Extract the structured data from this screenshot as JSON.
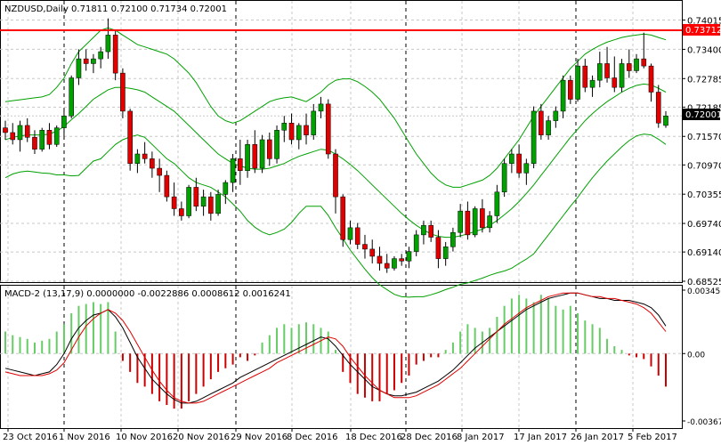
{
  "window": {
    "symbol_header": "NZDUSD,Daily  0.71811 0.72100 0.71734 0.72001",
    "macd_header": "MACD-2 (13,17,9) 0.0000000 -0.0022886 0.0008612 0.0016241"
  },
  "colors": {
    "background": "#ffffff",
    "grid": "#c8c8c8",
    "bull_candle": "#00a000",
    "bear_candle": "#e00000",
    "bollinger": "#00a000",
    "resistance": "#ff0000",
    "current_price_bg": "#000000",
    "resistance_tag_bg": "#ff0000",
    "macd_line": "#000000",
    "signal_line": "#e00000",
    "hist_pos": "#66cc66",
    "hist_neg": "#cc0000"
  },
  "chart_data": [
    {
      "type": "candlestick",
      "symbol": "NZDUSD",
      "timeframe": "Daily",
      "ylim": [
        0.68525,
        0.741
      ],
      "y_ticks": [
        "0.74015",
        "0.73400",
        "0.72785",
        "0.72185",
        "0.71570",
        "0.70970",
        "0.70355",
        "0.69740",
        "0.69140",
        "0.68525"
      ],
      "x_labels": [
        "23 Oct 2016",
        "1 Nov 2016",
        "10 Nov 2016",
        "20 Nov 2016",
        "29 Nov 2016",
        "8 Dec 2016",
        "18 Dec 2016",
        "28 Dec 2016",
        "8 Jan 2017",
        "17 Jan 2017",
        "26 Jan 2017",
        "5 Feb 2017"
      ],
      "resistance_level": "0.73712",
      "current_price": "0.72001",
      "candles": [
        [
          0.7175,
          0.719,
          0.715,
          0.7165
        ],
        [
          0.7165,
          0.7185,
          0.714,
          0.715
        ],
        [
          0.715,
          0.719,
          0.7125,
          0.718
        ],
        [
          0.718,
          0.7195,
          0.7145,
          0.7155
        ],
        [
          0.7155,
          0.717,
          0.712,
          0.713
        ],
        [
          0.713,
          0.7175,
          0.7125,
          0.717
        ],
        [
          0.717,
          0.7185,
          0.713,
          0.714
        ],
        [
          0.714,
          0.718,
          0.7135,
          0.7175
        ],
        [
          0.7175,
          0.7215,
          0.715,
          0.72
        ],
        [
          0.72,
          0.7285,
          0.7195,
          0.728
        ],
        [
          0.728,
          0.734,
          0.7265,
          0.732
        ],
        [
          0.732,
          0.734,
          0.7295,
          0.731
        ],
        [
          0.731,
          0.733,
          0.729,
          0.732
        ],
        [
          0.732,
          0.7345,
          0.73,
          0.7335
        ],
        [
          0.7335,
          0.7405,
          0.732,
          0.737
        ],
        [
          0.737,
          0.738,
          0.7275,
          0.729
        ],
        [
          0.729,
          0.73,
          0.7195,
          0.721
        ],
        [
          0.721,
          0.7215,
          0.7085,
          0.71
        ],
        [
          0.71,
          0.713,
          0.708,
          0.712
        ],
        [
          0.712,
          0.7145,
          0.71,
          0.711
        ],
        [
          0.711,
          0.7125,
          0.707,
          0.709
        ],
        [
          0.709,
          0.711,
          0.704,
          0.7075
        ],
        [
          0.7075,
          0.7085,
          0.702,
          0.703
        ],
        [
          0.703,
          0.706,
          0.699,
          0.7005
        ],
        [
          0.7005,
          0.702,
          0.698,
          0.699
        ],
        [
          0.699,
          0.7055,
          0.6985,
          0.705
        ],
        [
          0.705,
          0.707,
          0.7,
          0.701
        ],
        [
          0.701,
          0.7045,
          0.699,
          0.703
        ],
        [
          0.703,
          0.704,
          0.698,
          0.6995
        ],
        [
          0.6995,
          0.7045,
          0.699,
          0.7035
        ],
        [
          0.7035,
          0.7065,
          0.7015,
          0.706
        ],
        [
          0.706,
          0.712,
          0.704,
          0.711
        ],
        [
          0.711,
          0.715,
          0.7055,
          0.7085
        ],
        [
          0.7085,
          0.715,
          0.707,
          0.714
        ],
        [
          0.714,
          0.717,
          0.708,
          0.709
        ],
        [
          0.709,
          0.716,
          0.708,
          0.715
        ],
        [
          0.715,
          0.7165,
          0.7095,
          0.711
        ],
        [
          0.711,
          0.718,
          0.71,
          0.717
        ],
        [
          0.717,
          0.72,
          0.7145,
          0.7185
        ],
        [
          0.7185,
          0.7205,
          0.714,
          0.715
        ],
        [
          0.715,
          0.7185,
          0.713,
          0.718
        ],
        [
          0.718,
          0.7205,
          0.714,
          0.716
        ],
        [
          0.716,
          0.7225,
          0.715,
          0.721
        ],
        [
          0.721,
          0.724,
          0.7195,
          0.7225
        ],
        [
          0.7225,
          0.7235,
          0.711,
          0.712
        ],
        [
          0.712,
          0.713,
          0.6995,
          0.703
        ],
        [
          0.703,
          0.7035,
          0.6925,
          0.694
        ],
        [
          0.694,
          0.698,
          0.693,
          0.6965
        ],
        [
          0.6965,
          0.6975,
          0.692,
          0.693
        ],
        [
          0.693,
          0.695,
          0.69,
          0.692
        ],
        [
          0.692,
          0.694,
          0.689,
          0.6905
        ],
        [
          0.6905,
          0.6925,
          0.6875,
          0.689
        ],
        [
          0.689,
          0.691,
          0.687,
          0.688
        ],
        [
          0.688,
          0.6905,
          0.6875,
          0.69
        ],
        [
          0.69,
          0.691,
          0.6885,
          0.6895
        ],
        [
          0.6895,
          0.6925,
          0.688,
          0.6915
        ],
        [
          0.6915,
          0.696,
          0.6905,
          0.695
        ],
        [
          0.695,
          0.698,
          0.693,
          0.697
        ],
        [
          0.697,
          0.698,
          0.6935,
          0.6945
        ],
        [
          0.6945,
          0.696,
          0.688,
          0.69
        ],
        [
          0.69,
          0.6935,
          0.6885,
          0.6925
        ],
        [
          0.6925,
          0.6965,
          0.6915,
          0.6955
        ],
        [
          0.6955,
          0.7015,
          0.6945,
          0.7
        ],
        [
          0.7,
          0.702,
          0.694,
          0.695
        ],
        [
          0.695,
          0.701,
          0.6945,
          0.7005
        ],
        [
          0.7005,
          0.7025,
          0.6955,
          0.6965
        ],
        [
          0.6965,
          0.7,
          0.6955,
          0.699
        ],
        [
          0.699,
          0.7055,
          0.6975,
          0.704
        ],
        [
          0.704,
          0.711,
          0.703,
          0.71
        ],
        [
          0.71,
          0.713,
          0.708,
          0.712
        ],
        [
          0.712,
          0.714,
          0.707,
          0.708
        ],
        [
          0.708,
          0.711,
          0.7055,
          0.71
        ],
        [
          0.71,
          0.722,
          0.709,
          0.721
        ],
        [
          0.721,
          0.7225,
          0.715,
          0.716
        ],
        [
          0.716,
          0.72,
          0.715,
          0.719
        ],
        [
          0.719,
          0.722,
          0.7175,
          0.721
        ],
        [
          0.721,
          0.7285,
          0.7195,
          0.7275
        ],
        [
          0.7275,
          0.7285,
          0.7225,
          0.7235
        ],
        [
          0.7235,
          0.732,
          0.723,
          0.7305
        ],
        [
          0.7305,
          0.732,
          0.725,
          0.726
        ],
        [
          0.726,
          0.7285,
          0.724,
          0.7275
        ],
        [
          0.7275,
          0.7335,
          0.726,
          0.731
        ],
        [
          0.731,
          0.7345,
          0.727,
          0.728
        ],
        [
          0.728,
          0.7325,
          0.725,
          0.726
        ],
        [
          0.726,
          0.732,
          0.725,
          0.731
        ],
        [
          0.731,
          0.734,
          0.728,
          0.7295
        ],
        [
          0.7295,
          0.733,
          0.729,
          0.732
        ],
        [
          0.732,
          0.7375,
          0.73,
          0.7305
        ],
        [
          0.7305,
          0.731,
          0.723,
          0.725
        ],
        [
          0.725,
          0.7265,
          0.7175,
          0.7185
        ],
        [
          0.718,
          0.721,
          0.7175,
          0.72
        ]
      ],
      "bollinger": {
        "upper": [
          0.723,
          0.7232,
          0.7234,
          0.7236,
          0.7238,
          0.724,
          0.7245,
          0.726,
          0.728,
          0.731,
          0.7335,
          0.735,
          0.7365,
          0.738,
          0.7385,
          0.738,
          0.737,
          0.736,
          0.735,
          0.7345,
          0.734,
          0.7335,
          0.733,
          0.732,
          0.7305,
          0.729,
          0.727,
          0.7245,
          0.722,
          0.72,
          0.719,
          0.7185,
          0.719,
          0.72,
          0.721,
          0.722,
          0.723,
          0.7235,
          0.7238,
          0.724,
          0.7235,
          0.723,
          0.724,
          0.725,
          0.7265,
          0.7275,
          0.7278,
          0.7278,
          0.7272,
          0.7262,
          0.725,
          0.7235,
          0.7215,
          0.7195,
          0.717,
          0.7145,
          0.712,
          0.71,
          0.708,
          0.7065,
          0.7055,
          0.705,
          0.705,
          0.7055,
          0.706,
          0.7065,
          0.7075,
          0.709,
          0.711,
          0.713,
          0.715,
          0.7175,
          0.72,
          0.722,
          0.724,
          0.726,
          0.728,
          0.73,
          0.7315,
          0.733,
          0.734,
          0.7348,
          0.7355,
          0.736,
          0.7365,
          0.7368,
          0.737,
          0.7372,
          0.737,
          0.7365,
          0.736
        ],
        "middle": [
          0.715,
          0.7155,
          0.7158,
          0.716,
          0.716,
          0.716,
          0.7162,
          0.7168,
          0.7178,
          0.7192,
          0.7205,
          0.722,
          0.7235,
          0.7245,
          0.7255,
          0.726,
          0.726,
          0.7258,
          0.7255,
          0.725,
          0.724,
          0.723,
          0.722,
          0.721,
          0.7195,
          0.718,
          0.7165,
          0.715,
          0.7135,
          0.712,
          0.711,
          0.71,
          0.7095,
          0.709,
          0.7088,
          0.7088,
          0.709,
          0.7095,
          0.71,
          0.7108,
          0.7115,
          0.712,
          0.7125,
          0.713,
          0.7128,
          0.712,
          0.711,
          0.7098,
          0.7085,
          0.707,
          0.7055,
          0.704,
          0.7025,
          0.701,
          0.6995,
          0.6982,
          0.697,
          0.696,
          0.6952,
          0.6947,
          0.6945,
          0.6945,
          0.6948,
          0.6952,
          0.6957,
          0.6962,
          0.697,
          0.698,
          0.6992,
          0.7005,
          0.702,
          0.7037,
          0.7055,
          0.7075,
          0.7095,
          0.7115,
          0.7135,
          0.7155,
          0.7172,
          0.719,
          0.7205,
          0.7218,
          0.723,
          0.724,
          0.725,
          0.7258,
          0.7264,
          0.7267,
          0.7265,
          0.7258,
          0.725
        ],
        "lower": [
          0.707,
          0.7078,
          0.7082,
          0.7084,
          0.7082,
          0.708,
          0.7079,
          0.7076,
          0.7076,
          0.7074,
          0.7075,
          0.709,
          0.7105,
          0.711,
          0.7125,
          0.714,
          0.715,
          0.7156,
          0.716,
          0.7155,
          0.714,
          0.7125,
          0.711,
          0.71,
          0.7085,
          0.707,
          0.706,
          0.7055,
          0.705,
          0.704,
          0.703,
          0.7015,
          0.7,
          0.698,
          0.6966,
          0.6956,
          0.695,
          0.6955,
          0.6962,
          0.6976,
          0.6995,
          0.701,
          0.701,
          0.701,
          0.6991,
          0.6965,
          0.6942,
          0.6918,
          0.6898,
          0.6878,
          0.686,
          0.6845,
          0.6835,
          0.6825,
          0.682,
          0.6819,
          0.682,
          0.682,
          0.6824,
          0.6829,
          0.6835,
          0.684,
          0.6846,
          0.6849,
          0.6854,
          0.6859,
          0.6865,
          0.687,
          0.6874,
          0.688,
          0.689,
          0.6899,
          0.691,
          0.693,
          0.695,
          0.697,
          0.699,
          0.701,
          0.7029,
          0.705,
          0.707,
          0.7088,
          0.7105,
          0.712,
          0.7135,
          0.7148,
          0.7158,
          0.7162,
          0.716,
          0.7151,
          0.714
        ]
      }
    },
    {
      "type": "macd",
      "ylim": [
        -0.003673,
        0.003456
      ],
      "y_ticks": [
        "0.003456",
        "0.00",
        "-0.003673"
      ],
      "histogram": [
        0.0012,
        0.001,
        0.0009,
        0.0008,
        0.0006,
        0.0007,
        0.0008,
        0.0012,
        0.0016,
        0.0022,
        0.0026,
        0.0027,
        0.0028,
        0.0027,
        0.0028,
        0.0012,
        -0.0004,
        -0.001,
        -0.0016,
        -0.0018,
        -0.0022,
        -0.0026,
        -0.0028,
        -0.003,
        -0.003,
        -0.0026,
        -0.0022,
        -0.0018,
        -0.0014,
        -0.001,
        -0.0008,
        -0.0006,
        -0.0002,
        -0.0004,
        -0.0001,
        0.0006,
        0.001,
        0.0014,
        0.0016,
        0.0014,
        0.0016,
        0.0017,
        0.0016,
        0.0014,
        0.0012,
        0.0002,
        -0.001,
        -0.0016,
        -0.0022,
        -0.0024,
        -0.0026,
        -0.0026,
        -0.0022,
        -0.002,
        -0.0016,
        -0.0012,
        -0.0006,
        -0.0004,
        -0.0002,
        -0.0002,
        0.0002,
        0.0006,
        0.0012,
        0.0016,
        0.0014,
        0.0012,
        0.0014,
        0.002,
        0.0026,
        0.003,
        0.0032,
        0.003,
        0.0028,
        0.0032,
        0.003,
        0.0026,
        0.0024,
        0.0026,
        0.0022,
        0.0018,
        0.0016,
        0.0014,
        0.0008,
        0.0004,
        0.0002,
        -0.0001,
        -0.0002,
        -0.0003,
        -0.0007,
        -0.0012,
        -0.0018
      ],
      "macd_line": [
        -0.0008,
        -0.0009,
        -0.001,
        -0.0011,
        -0.0012,
        -0.0011,
        -0.001,
        -0.0006,
        0.0,
        0.0008,
        0.0014,
        0.0018,
        0.0021,
        0.0022,
        0.0024,
        0.002,
        0.0014,
        0.0006,
        -0.0002,
        -0.0008,
        -0.0014,
        -0.0018,
        -0.0022,
        -0.0025,
        -0.0027,
        -0.0027,
        -0.0026,
        -0.0024,
        -0.0022,
        -0.002,
        -0.0018,
        -0.0016,
        -0.0013,
        -0.0011,
        -0.0009,
        -0.0007,
        -0.0005,
        -0.0003,
        -0.0001,
        0.0001,
        0.0003,
        0.0005,
        0.0007,
        0.0009,
        0.0008,
        0.0004,
        -0.0001,
        -0.0006,
        -0.001,
        -0.0014,
        -0.0018,
        -0.002,
        -0.0022,
        -0.0023,
        -0.0023,
        -0.0022,
        -0.0021,
        -0.0019,
        -0.0017,
        -0.0015,
        -0.0012,
        -0.0009,
        -0.0005,
        -0.0001,
        0.0003,
        0.0006,
        0.0009,
        0.0012,
        0.0015,
        0.0018,
        0.0021,
        0.0024,
        0.0026,
        0.0028,
        0.003,
        0.0031,
        0.0032,
        0.0033,
        0.0033,
        0.0032,
        0.0031,
        0.003,
        0.003,
        0.0029,
        0.0029,
        0.0029,
        0.0028,
        0.0027,
        0.0025,
        0.0021,
        0.0015
      ],
      "signal_line": [
        -0.001,
        -0.0011,
        -0.0012,
        -0.0012,
        -0.0012,
        -0.0012,
        -0.0011,
        -0.0009,
        -0.0005,
        0.0002,
        0.0009,
        0.0015,
        0.0019,
        0.0022,
        0.0024,
        0.0022,
        0.0018,
        0.0012,
        0.0005,
        -0.0002,
        -0.0009,
        -0.0015,
        -0.002,
        -0.0024,
        -0.0026,
        -0.0027,
        -0.0027,
        -0.0026,
        -0.0024,
        -0.0022,
        -0.002,
        -0.0018,
        -0.0016,
        -0.0014,
        -0.0012,
        -0.001,
        -0.0008,
        -0.0005,
        -0.0003,
        -0.0001,
        0.0001,
        0.0003,
        0.0005,
        0.0007,
        0.0009,
        0.0008,
        0.0004,
        -0.0002,
        -0.0007,
        -0.0012,
        -0.0016,
        -0.002,
        -0.0022,
        -0.0024,
        -0.0024,
        -0.0024,
        -0.0023,
        -0.0021,
        -0.0019,
        -0.0017,
        -0.0014,
        -0.0011,
        -0.0008,
        -0.0004,
        0.0,
        0.0004,
        0.0008,
        0.0012,
        0.0016,
        0.0019,
        0.0022,
        0.0025,
        0.0027,
        0.0029,
        0.0031,
        0.0032,
        0.0033,
        0.0033,
        0.0033,
        0.0032,
        0.0031,
        0.0031,
        0.003,
        0.003,
        0.0029,
        0.0028,
        0.0027,
        0.0025,
        0.0022,
        0.0017,
        0.0012
      ]
    }
  ]
}
